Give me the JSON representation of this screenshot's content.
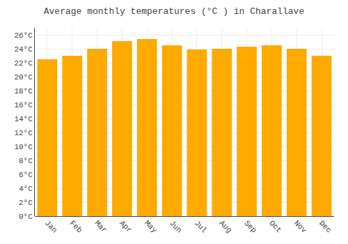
{
  "chart_data": {
    "type": "bar",
    "title": "Average monthly temperatures (°C ) in Charallave",
    "categories": [
      "Jan",
      "Feb",
      "Mar",
      "Apr",
      "May",
      "Jun",
      "Jul",
      "Aug",
      "Sep",
      "Oct",
      "Nov",
      "Dec"
    ],
    "values": [
      22.5,
      23.0,
      24.0,
      25.1,
      25.4,
      24.5,
      23.9,
      24.0,
      24.3,
      24.5,
      24.0,
      23.0
    ],
    "color": "#FFAA00",
    "ylim": [
      0,
      27
    ],
    "yticks": [
      {
        "value": 0,
        "label": "0°C"
      },
      {
        "value": 2,
        "label": "2°C"
      },
      {
        "value": 4,
        "label": "4°C"
      },
      {
        "value": 6,
        "label": "6°C"
      },
      {
        "value": 8,
        "label": "8°C"
      },
      {
        "value": 10,
        "label": "10°C"
      },
      {
        "value": 12,
        "label": "12°C"
      },
      {
        "value": 14,
        "label": "14°C"
      },
      {
        "value": 16,
        "label": "16°C"
      },
      {
        "value": 18,
        "label": "18°C"
      },
      {
        "value": 20,
        "label": "20°C"
      },
      {
        "value": 22,
        "label": "22°C"
      },
      {
        "value": 24,
        "label": "24°C"
      },
      {
        "value": 26,
        "label": "26°C"
      }
    ],
    "grid": true
  }
}
